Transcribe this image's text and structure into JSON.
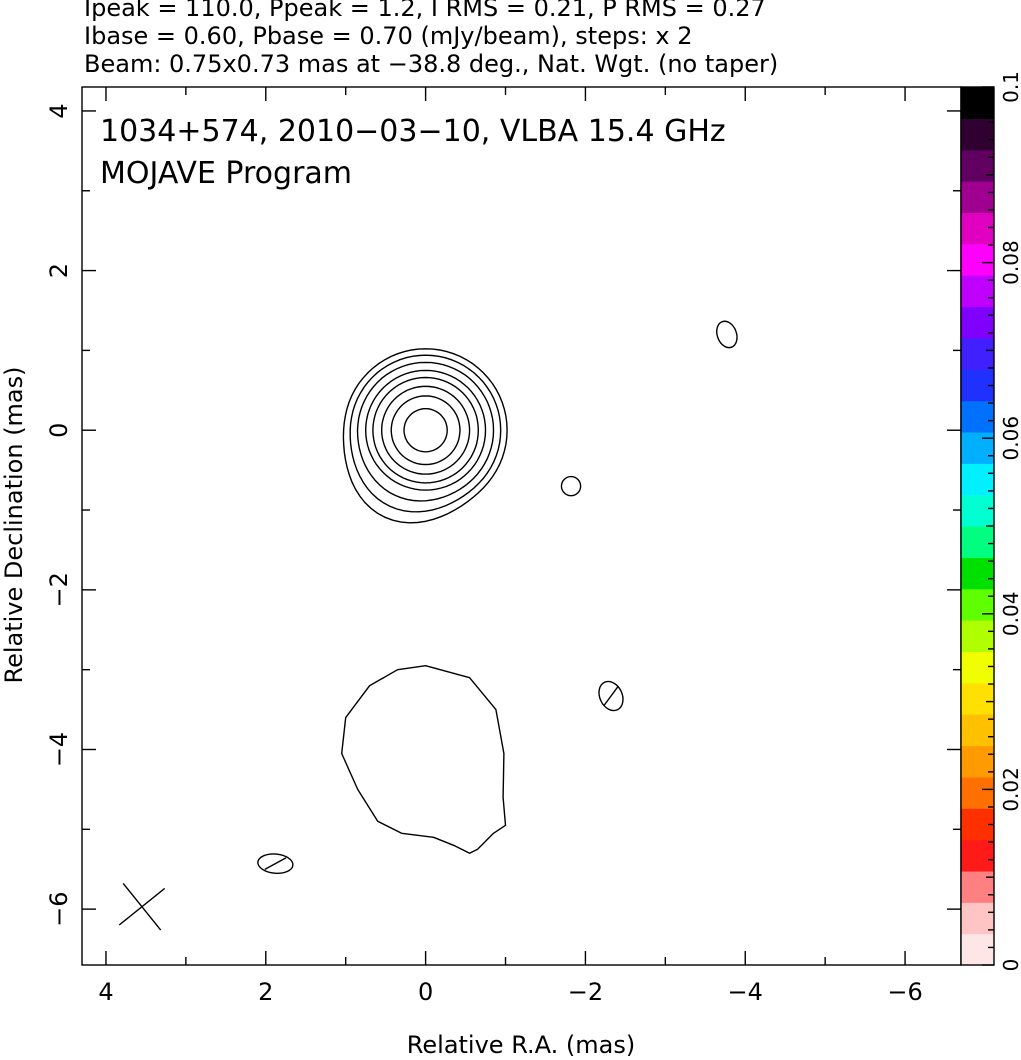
{
  "header": {
    "line1": "Ipeak = 110.0, Ppeak = 1.2, I RMS = 0.21, P RMS = 0.27",
    "line2": "Ibase = 0.60, Pbase = 0.70 (mJy/beam), steps: x 2",
    "line3": "Beam: 0.75x0.73 mas at −38.8 deg., Nat. Wgt. (no taper)"
  },
  "chart_data": {
    "type": "contour",
    "title": "1034+574, 2010−03−10, VLBA 15.4 GHz",
    "subtitle": "MOJAVE Program",
    "xlabel": "Relative R.A. (mas)",
    "ylabel": "Relative Declination (mas)",
    "xlim": [
      4.3,
      -6.7
    ],
    "ylim": [
      -6.7,
      4.3
    ],
    "xticks": [
      4,
      2,
      0,
      -2,
      -4,
      -6
    ],
    "xtick_labels": [
      "4",
      "2",
      "0",
      "−2",
      "−4",
      "−6"
    ],
    "yticks": [
      -6,
      -4,
      -2,
      0,
      2,
      4
    ],
    "ytick_labels": [
      "−6",
      "−4",
      "−2",
      "0",
      "2",
      "4"
    ],
    "core": {
      "center": [
        0,
        0
      ],
      "contour_radii_mas": [
        0.27,
        0.43,
        0.55,
        0.66,
        0.75,
        0.85,
        0.94,
        1.02
      ],
      "extension": {
        "x": 0.6,
        "y": -1.25
      }
    },
    "lobe": {
      "points": [
        [
          0.0,
          -2.95
        ],
        [
          -0.55,
          -3.1
        ],
        [
          -0.88,
          -3.5
        ],
        [
          -0.98,
          -4.05
        ],
        [
          -0.97,
          -4.6
        ],
        [
          -1.0,
          -4.95
        ],
        [
          -0.85,
          -5.05
        ],
        [
          -0.65,
          -5.25
        ],
        [
          -0.55,
          -5.3
        ],
        [
          -0.35,
          -5.2
        ],
        [
          -0.1,
          -5.1
        ],
        [
          0.3,
          -5.05
        ],
        [
          0.6,
          -4.9
        ],
        [
          0.85,
          -4.5
        ],
        [
          1.05,
          -4.05
        ],
        [
          1.0,
          -3.6
        ],
        [
          0.7,
          -3.2
        ],
        [
          0.35,
          -3.0
        ]
      ]
    },
    "blobs": [
      {
        "x": -1.82,
        "y": -0.7,
        "rx": 0.12,
        "ry": 0.12,
        "rot": 0,
        "tick": false
      },
      {
        "x": -3.77,
        "y": 1.2,
        "rx": 0.12,
        "ry": 0.17,
        "rot": -20,
        "tick": false
      },
      {
        "x": -2.32,
        "y": -3.33,
        "rx": 0.14,
        "ry": 0.19,
        "rot": -25,
        "tick": true
      },
      {
        "x": 1.88,
        "y": -5.43,
        "rx": 0.22,
        "ry": 0.12,
        "rot": 5,
        "tick": true
      }
    ],
    "beam": {
      "x": 3.55,
      "y": -5.97,
      "major": 0.75,
      "minor": 0.73,
      "pa_deg": -38.8
    },
    "colorbar": {
      "min": 0,
      "max": 0.1,
      "tick_values": [
        0,
        0.02,
        0.04,
        0.06,
        0.08,
        0.1
      ],
      "tick_labels": [
        "0",
        "0.02",
        "0.04",
        "0.06",
        "0.08",
        "0.1"
      ],
      "colors": [
        "#ffe6e6",
        "#ffc4c4",
        "#ff8080",
        "#ff1a1a",
        "#ff3000",
        "#ff7000",
        "#ff9a00",
        "#ffc000",
        "#ffe000",
        "#f0ff00",
        "#b0ff00",
        "#60ff00",
        "#00e000",
        "#00ff80",
        "#00ffd0",
        "#00f0ff",
        "#00b0ff",
        "#0070ff",
        "#2030ff",
        "#4020ff",
        "#8000ff",
        "#c000ff",
        "#ff00ff",
        "#e000c0",
        "#a00090",
        "#600060",
        "#300030",
        "#000000"
      ]
    }
  }
}
